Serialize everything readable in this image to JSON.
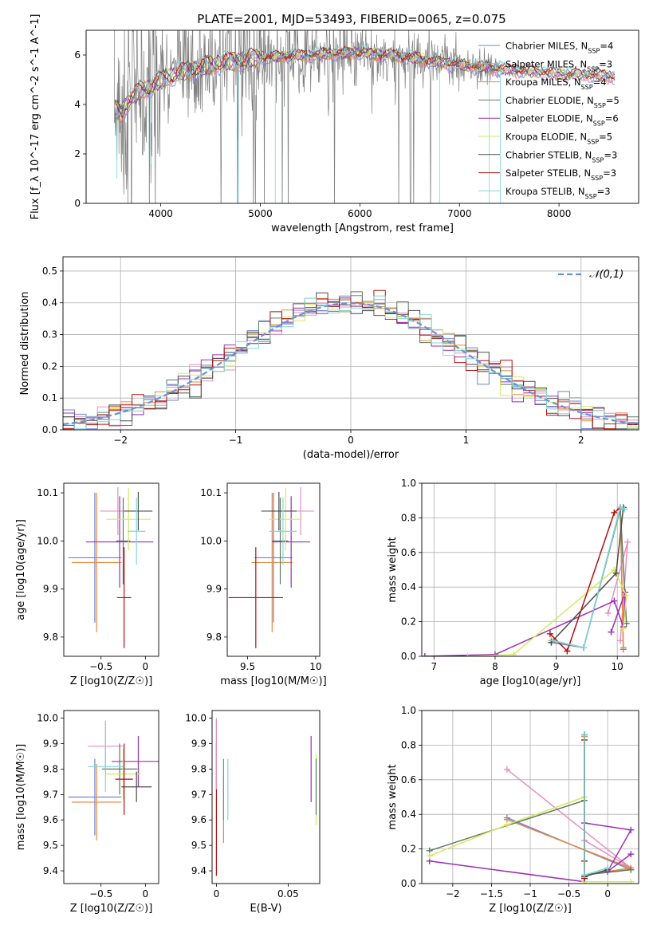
{
  "figure": {
    "title": "PLATE=2001, MJD=53493, FIBERID=0065, z=0.075"
  },
  "colors": {
    "Chabrier MILES": "#6f84d8",
    "Salpeter MILES": "#e58fc0",
    "Kroupa MILES": "#e8893c",
    "Chabrier ELODIE": "#5f7a5f",
    "Salpeter ELODIE": "#9b2fb3",
    "Kroupa ELODIE": "#d6e860",
    "Chabrier STELIB": "#4d4d4d",
    "Salpeter STELIB": "#b01010",
    "Kroupa STELIB": "#7fd7d9",
    "raw_spectrum": "#808080",
    "normal_curve": "#6a8fd6",
    "grid": "#b0b0b0"
  },
  "chart_data": [
    {
      "id": "spectrum",
      "type": "line",
      "xlabel": "wavelength [Angstrom, rest frame]",
      "ylabel": "Flux [f_λ 10^-17 erg cm^-2 s^-1 A^-1]",
      "xlim": [
        3250,
        8800
      ],
      "ylim": [
        0,
        7.0
      ],
      "xticks": [
        4000,
        5000,
        6000,
        7000,
        8000
      ],
      "yticks": [
        0,
        2,
        4,
        6
      ],
      "grid": false,
      "legend_position": "right",
      "legend": [
        {
          "label": "Chabrier MILES",
          "nssp": "4"
        },
        {
          "label": "Salpeter MILES",
          "nssp": "3"
        },
        {
          "label": "Kroupa MILES",
          "nssp": "4"
        },
        {
          "label": "Chabrier ELODIE",
          "nssp": "5"
        },
        {
          "label": "Salpeter ELODIE",
          "nssp": "6"
        },
        {
          "label": "Kroupa ELODIE",
          "nssp": "5"
        },
        {
          "label": "Chabrier STELIB",
          "nssp": "3"
        },
        {
          "label": "Salpeter STELIB",
          "nssp": "3"
        },
        {
          "label": "Kroupa STELIB",
          "nssp": "3"
        }
      ],
      "continuum": {
        "x": [
          3540,
          3600,
          3700,
          3800,
          3900,
          4000,
          4200,
          4500,
          5000,
          5500,
          6000,
          6500,
          7000,
          7500,
          8000,
          8500
        ],
        "y": [
          3.8,
          3.7,
          4.2,
          4.6,
          4.7,
          5.0,
          5.3,
          5.6,
          5.9,
          6.0,
          6.1,
          5.9,
          5.6,
          5.4,
          5.25,
          5.15
        ]
      }
    },
    {
      "id": "residual-hist",
      "type": "step",
      "xlabel": "(data-model)/error",
      "ylabel": "Normed distribution",
      "xlim": [
        -2.5,
        2.5
      ],
      "ylim": [
        0,
        0.545
      ],
      "xticks": [
        -2,
        -1,
        0,
        1,
        2
      ],
      "yticks": [
        0.0,
        0.1,
        0.2,
        0.3,
        0.4,
        0.5
      ],
      "grid": true,
      "legend": "𝒩(0,1)",
      "legend_position": "top-right",
      "bin_width": 0.1
    },
    {
      "id": "age-vs-Z",
      "type": "errorbar",
      "xlabel": "Z [log10(Z/Z☉)]",
      "ylabel": "age  [log10(age/yr)]",
      "xlim": [
        -0.92,
        0.15
      ],
      "ylim": [
        9.76,
        10.12
      ],
      "xticks": [
        -0.5,
        0.0
      ],
      "yticks": [
        9.8,
        9.9,
        10.0,
        10.1
      ],
      "points": [
        {
          "model": "Chabrier MILES",
          "x": -0.57,
          "xerr": 0.3,
          "y": 9.965,
          "yerr": 0.135
        },
        {
          "model": "Salpeter MILES",
          "x": -0.31,
          "xerr": 0.2,
          "y": 10.062,
          "yerr": 0.05
        },
        {
          "model": "Kroupa MILES",
          "x": -0.55,
          "xerr": 0.28,
          "y": 9.955,
          "yerr": 0.145
        },
        {
          "model": "Chabrier ELODIE",
          "x": -0.25,
          "xerr": 0.08,
          "y": 10.0,
          "yerr": 0.09
        },
        {
          "model": "Salpeter ELODIE",
          "x": -0.29,
          "xerr": 0.38,
          "y": 9.998,
          "yerr": 0.095
        },
        {
          "model": "Kroupa ELODIE",
          "x": -0.19,
          "xerr": 0.25,
          "y": 10.045,
          "yerr": 0.065
        },
        {
          "model": "Chabrier STELIB",
          "x": -0.08,
          "xerr": 0.16,
          "y": 10.062,
          "yerr": 0.04
        },
        {
          "model": "Salpeter STELIB",
          "x": -0.24,
          "xerr": 0.08,
          "y": 9.882,
          "yerr": 0.105
        },
        {
          "model": "Kroupa STELIB",
          "x": -0.1,
          "xerr": 0.1,
          "y": 10.02,
          "yerr": 0.07
        }
      ]
    },
    {
      "id": "age-vs-mass",
      "type": "errorbar",
      "xlabel": "mass [log10(M/M☉)]",
      "ylabel": "",
      "xlim": [
        9.35,
        10.03
      ],
      "ylim": [
        9.76,
        10.12
      ],
      "xticks": [
        9.5,
        10.0
      ],
      "yticks": [
        9.8,
        9.9,
        10.0,
        10.1
      ],
      "points": [
        {
          "model": "Chabrier MILES",
          "x": 9.69,
          "xerr": 0.14,
          "y": 9.965,
          "yerr": 0.135
        },
        {
          "model": "Salpeter MILES",
          "x": 9.89,
          "xerr": 0.1,
          "y": 10.062,
          "yerr": 0.05
        },
        {
          "model": "Kroupa MILES",
          "x": 9.68,
          "xerr": 0.15,
          "y": 9.955,
          "yerr": 0.145
        },
        {
          "model": "Chabrier ELODIE",
          "x": 9.74,
          "xerr": 0.06,
          "y": 10.0,
          "yerr": 0.09
        },
        {
          "model": "Salpeter ELODIE",
          "x": 9.82,
          "xerr": 0.14,
          "y": 9.998,
          "yerr": 0.095
        },
        {
          "model": "Kroupa ELODIE",
          "x": 9.78,
          "xerr": 0.12,
          "y": 10.045,
          "yerr": 0.065
        },
        {
          "model": "Chabrier STELIB",
          "x": 9.73,
          "xerr": 0.13,
          "y": 10.062,
          "yerr": 0.04
        },
        {
          "model": "Salpeter STELIB",
          "x": 9.56,
          "xerr": 0.2,
          "y": 9.882,
          "yerr": 0.105
        },
        {
          "model": "Kroupa STELIB",
          "x": 9.76,
          "xerr": 0.1,
          "y": 10.02,
          "yerr": 0.07
        }
      ]
    },
    {
      "id": "weight-vs-age",
      "type": "line",
      "xlabel": "age  [log10(age/yr)]",
      "ylabel": "mass weight",
      "xlim": [
        6.8,
        10.35
      ],
      "ylim": [
        0,
        1.0
      ],
      "xticks": [
        7,
        8,
        9,
        10
      ],
      "yticks": [
        0.0,
        0.2,
        0.4,
        0.6,
        0.8,
        1.0
      ],
      "grid": true,
      "series": [
        {
          "model": "Chabrier MILES",
          "x": [
            8.92,
            9.45,
            10.05,
            10.1
          ],
          "y": [
            0.08,
            0.05,
            0.86,
            0.04
          ]
        },
        {
          "model": "Salpeter MILES",
          "x": [
            9.85,
            10.17,
            10.05
          ],
          "y": [
            0.25,
            0.66,
            0.09
          ]
        },
        {
          "model": "Kroupa MILES",
          "x": [
            8.92,
            9.45,
            10.05,
            10.1
          ],
          "y": [
            0.09,
            0.05,
            0.85,
            0.05
          ]
        },
        {
          "model": "Chabrier ELODIE",
          "x": [
            8.95,
            9.45,
            10.05,
            10.15
          ],
          "y": [
            0.09,
            0.05,
            0.85,
            0.19
          ]
        },
        {
          "model": "Salpeter ELODIE",
          "x": [
            6.85,
            8.0,
            9.95,
            10.1,
            10.13,
            9.9
          ],
          "y": [
            0.0,
            0.01,
            0.32,
            0.17,
            0.37,
            0.14
          ]
        },
        {
          "model": "Kroupa ELODIE",
          "x": [
            7.55,
            8.3,
            9.95,
            10.15,
            10.1
          ],
          "y": [
            0.0,
            0.01,
            0.5,
            0.35,
            0.16
          ]
        },
        {
          "model": "Chabrier STELIB",
          "x": [
            8.92,
            9.98,
            10.1
          ],
          "y": [
            0.08,
            0.48,
            0.86
          ]
        },
        {
          "model": "Salpeter STELIB",
          "x": [
            8.9,
            9.18,
            9.95,
            10.05
          ],
          "y": [
            0.13,
            0.03,
            0.83,
            0.86
          ]
        },
        {
          "model": "Kroupa STELIB",
          "x": [
            8.95,
            9.45,
            10.05,
            10.12
          ],
          "y": [
            0.09,
            0.05,
            0.86,
            0.85
          ]
        }
      ]
    },
    {
      "id": "mass-vs-Z",
      "type": "errorbar",
      "xlabel": "Z [log10(Z/Z☉)]",
      "ylabel": "mass [log10(M/M☉)]",
      "xlim": [
        -0.92,
        0.15
      ],
      "ylim": [
        9.35,
        10.03
      ],
      "xticks": [
        -0.5,
        0.0
      ],
      "yticks": [
        9.4,
        9.5,
        9.6,
        9.7,
        9.8,
        9.9,
        10.0
      ],
      "points": [
        {
          "model": "Chabrier MILES",
          "x": -0.57,
          "xerr": 0.3,
          "y": 9.69,
          "yerr": 0.15
        },
        {
          "model": "Salpeter MILES",
          "x": -0.45,
          "xerr": 0.2,
          "y": 9.89,
          "yerr": 0.1
        },
        {
          "model": "Kroupa MILES",
          "x": -0.55,
          "xerr": 0.28,
          "y": 9.67,
          "yerr": 0.15
        },
        {
          "model": "Chabrier ELODIE",
          "x": -0.29,
          "xerr": 0.2,
          "y": 9.8,
          "yerr": 0.1
        },
        {
          "model": "Salpeter ELODIE",
          "x": -0.08,
          "xerr": 0.3,
          "y": 9.83,
          "yerr": 0.1
        },
        {
          "model": "Kroupa ELODIE",
          "x": -0.25,
          "xerr": 0.2,
          "y": 9.78,
          "yerr": 0.1
        },
        {
          "model": "Chabrier STELIB",
          "x": -0.1,
          "xerr": 0.17,
          "y": 9.73,
          "yerr": 0.06
        },
        {
          "model": "Salpeter STELIB",
          "x": -0.24,
          "xerr": 0.1,
          "y": 9.76,
          "yerr": 0.14
        },
        {
          "model": "Kroupa STELIB",
          "x": -0.45,
          "xerr": 0.2,
          "y": 9.81,
          "yerr": 0.1
        }
      ]
    },
    {
      "id": "mass-vs-EBV",
      "type": "errorbar",
      "xlabel": "E(B-V)",
      "ylabel": "",
      "xlim": [
        -0.003,
        0.072
      ],
      "ylim": [
        9.35,
        10.03
      ],
      "xticks": [
        0.0,
        0.05
      ],
      "yticks": [
        9.4,
        9.5,
        9.6,
        9.7,
        9.8,
        9.9,
        10.0
      ],
      "points": [
        {
          "model": "Salpeter STELIB",
          "x": 0.0,
          "y": 9.64,
          "yerr": 0.26
        },
        {
          "model": "Salpeter MILES",
          "x": 0.0,
          "y": 9.86,
          "yerr": 0.14
        },
        {
          "model": "Salpeter MILES",
          "x": 0.0,
          "y": 9.89,
          "yerr": 0.1
        },
        {
          "model": "Kroupa MILES",
          "x": 0.005,
          "y": 9.64,
          "yerr": 0.13
        },
        {
          "model": "Chabrier MILES",
          "x": 0.005,
          "y": 9.72,
          "yerr": 0.12
        },
        {
          "model": "Kroupa STELIB",
          "x": 0.008,
          "y": 9.72,
          "yerr": 0.12
        },
        {
          "model": "Salpeter ELODIE",
          "x": 0.066,
          "y": 9.8,
          "yerr": 0.13
        },
        {
          "model": "Kroupa ELODIE",
          "x": 0.0695,
          "y": 9.72,
          "yerr": 0.14
        },
        {
          "model": "Chabrier ELODIE",
          "x": 0.0695,
          "y": 9.73,
          "yerr": 0.11
        }
      ]
    },
    {
      "id": "weight-vs-Z",
      "type": "line",
      "xlabel": "Z [log10(Z/Z☉)]",
      "ylabel": "mass weight",
      "xlim": [
        -2.4,
        0.4
      ],
      "ylim": [
        0,
        1.0
      ],
      "xticks": [
        -2.0,
        -1.5,
        -1.0,
        -0.5,
        0.0
      ],
      "yticks": [
        0.0,
        0.2,
        0.4,
        0.6,
        0.8,
        1.0
      ],
      "grid": true,
      "series": [
        {
          "model": "Chabrier MILES",
          "x": [
            -1.3,
            0.3,
            -0.3,
            -0.3
          ],
          "y": [
            0.38,
            0.08,
            0.05,
            0.86
          ]
        },
        {
          "model": "Salpeter MILES",
          "x": [
            -1.3,
            0.3,
            -0.3
          ],
          "y": [
            0.66,
            0.09,
            0.25
          ]
        },
        {
          "model": "Kroupa MILES",
          "x": [
            -1.3,
            0.3,
            -0.3,
            -0.3
          ],
          "y": [
            0.37,
            0.09,
            0.05,
            0.85
          ]
        },
        {
          "model": "Chabrier ELODIE",
          "x": [
            -2.3,
            -0.3,
            -0.3,
            0.3
          ],
          "y": [
            0.19,
            0.48,
            0.05,
            0.08
          ]
        },
        {
          "model": "Salpeter ELODIE",
          "x": [
            -2.3,
            -0.3,
            -0.3,
            0.3,
            0.0,
            0.3
          ],
          "y": [
            0.13,
            0.01,
            0.35,
            0.31,
            0.07,
            0.17
          ]
        },
        {
          "model": "Kroupa ELODIE",
          "x": [
            -2.3,
            -1.3,
            -0.3,
            -0.3,
            0.0,
            0.3
          ],
          "y": [
            0.16,
            0.34,
            0.5,
            0.01,
            0.01,
            0.01
          ]
        },
        {
          "model": "Chabrier STELIB",
          "x": [
            -0.3,
            -0.3,
            0.0
          ],
          "y": [
            0.86,
            0.04,
            0.08
          ]
        },
        {
          "model": "Salpeter STELIB",
          "x": [
            -0.3,
            -0.3,
            -0.3
          ],
          "y": [
            0.83,
            0.03,
            0.13
          ]
        },
        {
          "model": "Kroupa STELIB",
          "x": [
            -0.3,
            -0.3,
            0.0
          ],
          "y": [
            0.86,
            0.05,
            0.09
          ]
        }
      ]
    }
  ]
}
